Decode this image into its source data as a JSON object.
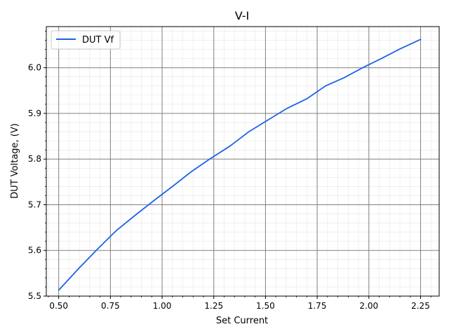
{
  "chart_data": {
    "type": "line",
    "title": "V-I",
    "xlabel": "Set Current",
    "ylabel": "DUT Voltage, (V)",
    "xlim": [
      0.44,
      2.34
    ],
    "ylim": [
      5.5,
      6.09
    ],
    "x_ticks": [
      0.5,
      0.75,
      1.0,
      1.25,
      1.5,
      1.75,
      2.0,
      2.25
    ],
    "x_tick_labels": [
      "0.50",
      "0.75",
      "1.00",
      "1.25",
      "1.50",
      "1.75",
      "2.00",
      "2.25"
    ],
    "y_ticks": [
      5.5,
      5.6,
      5.7,
      5.8,
      5.9,
      6.0
    ],
    "y_tick_labels": [
      "5.5",
      "5.6",
      "5.7",
      "5.8",
      "5.9",
      "6.0"
    ],
    "grid": true,
    "minor_grid": true,
    "legend_position": "top-left",
    "series": [
      {
        "name": "DUT Vf",
        "color": "#1f62e6",
        "x": [
          0.5,
          0.6,
          0.69,
          0.78,
          0.87,
          0.96,
          1.05,
          1.14,
          1.23,
          1.33,
          1.42,
          1.51,
          1.6,
          1.7,
          1.79,
          1.88,
          1.97,
          2.06,
          2.15,
          2.25
        ],
        "y": [
          5.513,
          5.562,
          5.604,
          5.644,
          5.677,
          5.709,
          5.74,
          5.772,
          5.8,
          5.829,
          5.86,
          5.885,
          5.91,
          5.932,
          5.96,
          5.978,
          6.0,
          6.02,
          6.041,
          6.062
        ]
      }
    ]
  }
}
